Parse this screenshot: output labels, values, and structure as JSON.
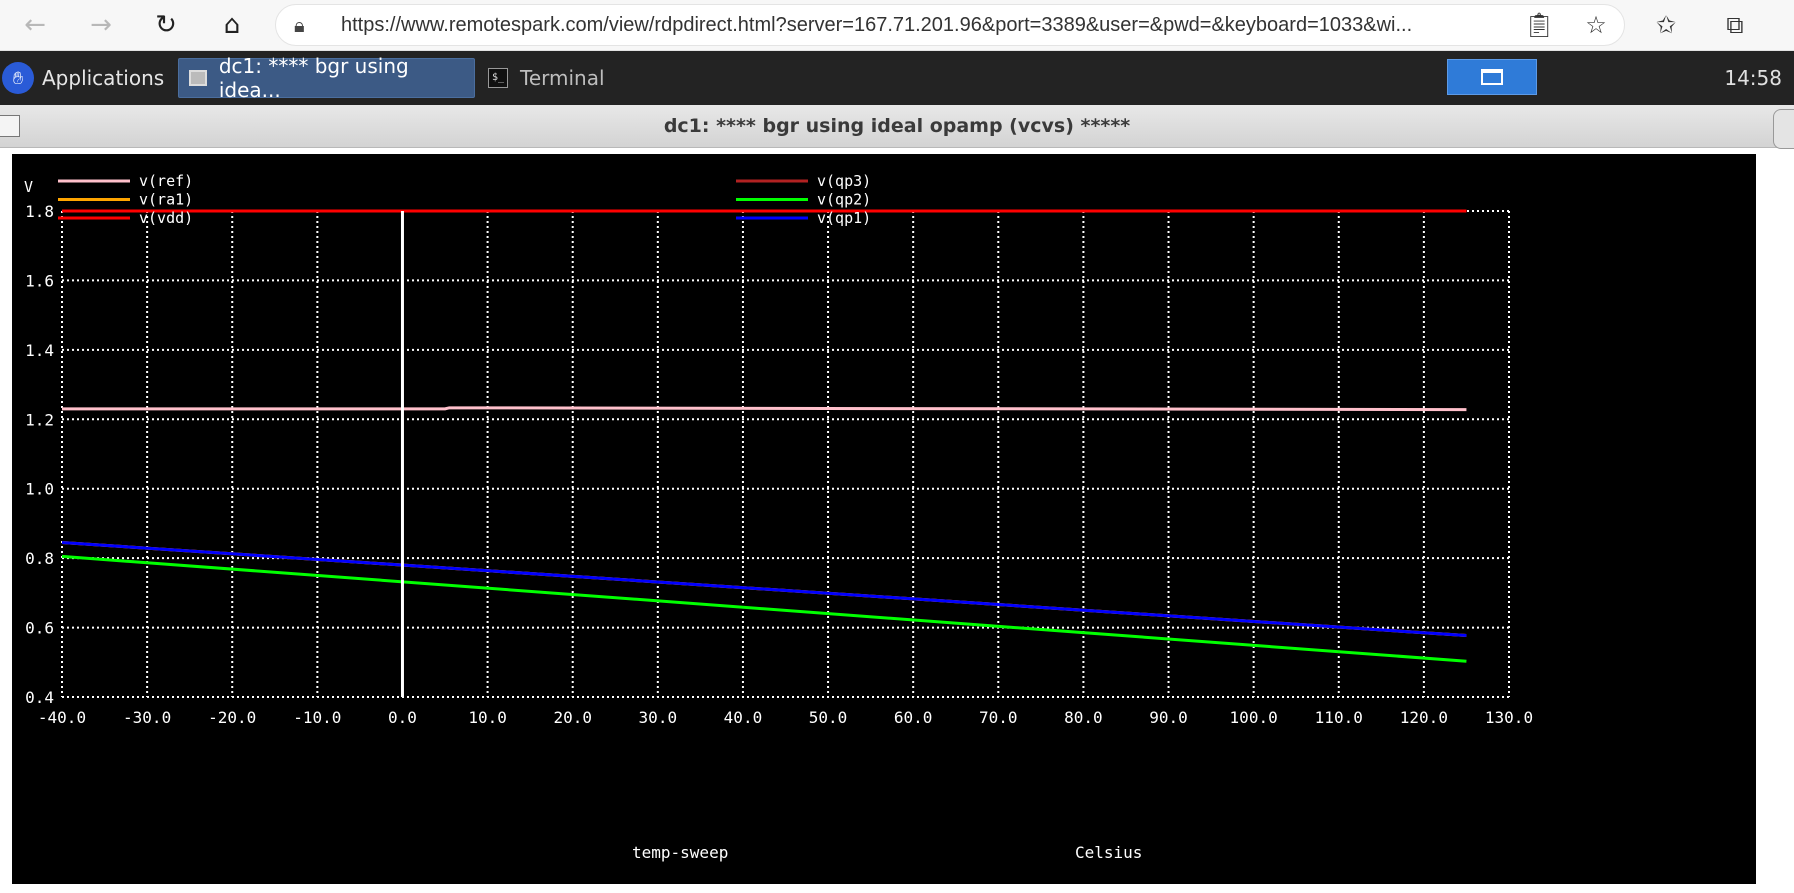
{
  "browser": {
    "url": "https://www.remotespark.com/view/rdpdirect.html?server=167.71.201.96&port=3389&user=&pwd=&keyboard=1033&wi..."
  },
  "panel": {
    "applications_label": "Applications",
    "tasks": [
      {
        "label": "dc1: **** bgr using idea...",
        "active": true
      },
      {
        "label": "Terminal",
        "active": false
      }
    ],
    "clock": "14:58"
  },
  "window": {
    "title": "dc1: **** bgr using ideal opamp (vcvs) *****"
  },
  "colors": {
    "plot_background": "#000000",
    "grid": "#ffffff",
    "text": "#ffffff",
    "vref": "#ffc0cb",
    "vra1": "#ffa500",
    "vvdd": "#ff0000",
    "vqp3": "#b22222",
    "vqp2": "#00ff00",
    "vqp1": "#0000ff"
  },
  "chart_data": {
    "type": "line",
    "title": "",
    "xlabel_left": "temp-sweep",
    "xlabel_right": "Celsius",
    "ylabel": "V",
    "xlim": [
      -40,
      130
    ],
    "ylim": [
      0.4,
      1.8
    ],
    "x_ticks": [
      "-40.0",
      "-30.0",
      "-20.0",
      "-10.0",
      "0.0",
      "10.0",
      "20.0",
      "30.0",
      "40.0",
      "50.0",
      "60.0",
      "70.0",
      "80.0",
      "90.0",
      "100.0",
      "110.0",
      "120.0",
      "130.0"
    ],
    "y_ticks": [
      "0.4",
      "0.6",
      "0.8",
      "1.0",
      "1.2",
      "1.4",
      "1.6",
      "1.8"
    ],
    "grid": true,
    "legend_position": "top",
    "cursor_x": 0,
    "series": [
      {
        "name": "v(ref)",
        "color_key": "vref",
        "x": [
          -40,
          5,
          5.5,
          125
        ],
        "y": [
          1.23,
          1.23,
          1.233,
          1.228
        ]
      },
      {
        "name": "v(ra1)",
        "color_key": "vra1",
        "x": [
          -40,
          125
        ],
        "y": [
          0.845,
          0.577
        ]
      },
      {
        "name": "v(vdd)",
        "color_key": "vvdd",
        "x": [
          -40,
          125
        ],
        "y": [
          1.8,
          1.8
        ]
      },
      {
        "name": "v(qp3)",
        "color_key": "vqp3",
        "x": [
          -40,
          125
        ],
        "y": [
          0.845,
          0.577
        ]
      },
      {
        "name": "v(qp2)",
        "color_key": "vqp2",
        "x": [
          -40,
          125
        ],
        "y": [
          0.805,
          0.503
        ]
      },
      {
        "name": "v(qp1)",
        "color_key": "vqp1",
        "x": [
          -40,
          125
        ],
        "y": [
          0.845,
          0.577
        ]
      }
    ]
  }
}
